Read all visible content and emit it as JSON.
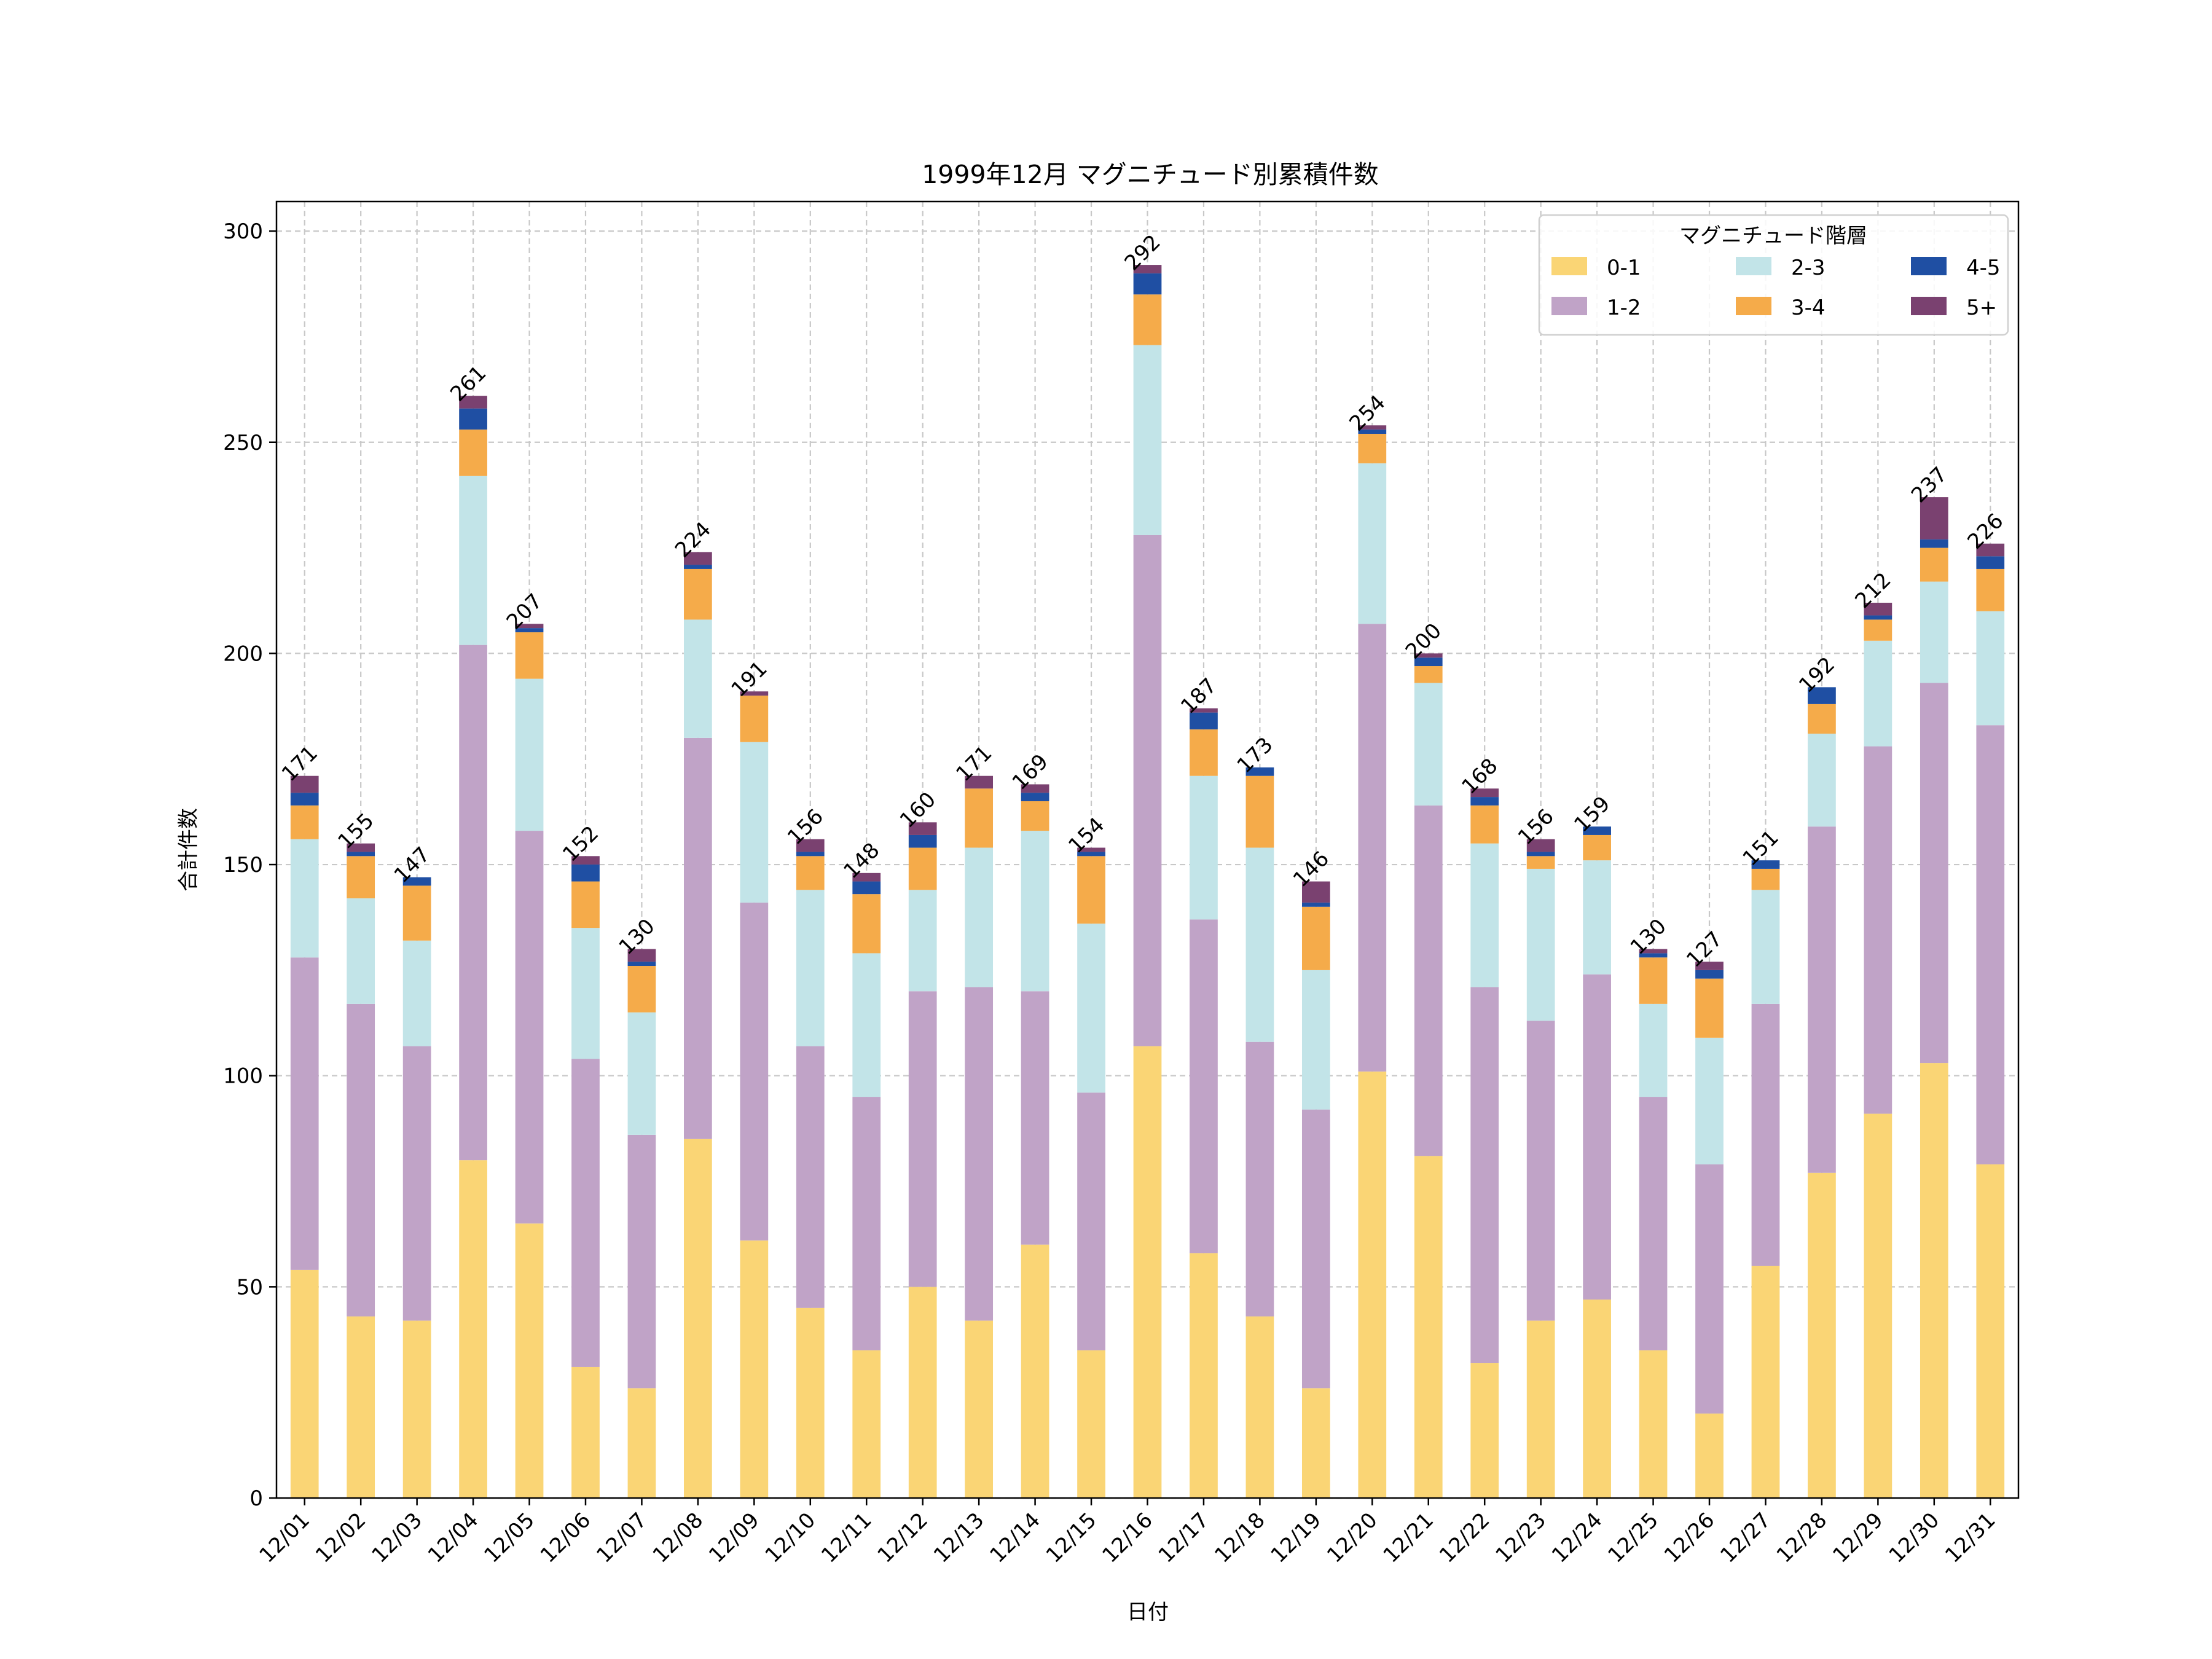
{
  "chart_data": {
    "type": "bar",
    "stacked": true,
    "title": "1999年12月 マグニチュード別累積件数",
    "xlabel": "日付",
    "ylabel": "合計件数",
    "ylim": [
      0,
      307
    ],
    "yticks": [
      0,
      50,
      100,
      150,
      200,
      250,
      300
    ],
    "grid": true,
    "legend": {
      "title": "マグニチュード階層",
      "placement": "top-right",
      "columns": 3
    },
    "categories": [
      "12/01",
      "12/02",
      "12/03",
      "12/04",
      "12/05",
      "12/06",
      "12/07",
      "12/08",
      "12/09",
      "12/10",
      "12/11",
      "12/12",
      "12/13",
      "12/14",
      "12/15",
      "12/16",
      "12/17",
      "12/18",
      "12/19",
      "12/20",
      "12/21",
      "12/22",
      "12/23",
      "12/24",
      "12/25",
      "12/26",
      "12/27",
      "12/28",
      "12/29",
      "12/30",
      "12/31"
    ],
    "series": [
      {
        "name": "0-1",
        "color": "#fad575",
        "values": [
          54,
          43,
          42,
          80,
          65,
          31,
          26,
          85,
          61,
          45,
          35,
          50,
          42,
          60,
          35,
          107,
          58,
          43,
          26,
          101,
          81,
          32,
          42,
          47,
          35,
          20,
          55,
          77,
          91,
          103,
          79
        ]
      },
      {
        "name": "1-2",
        "color": "#c0a3c7",
        "values": [
          74,
          74,
          65,
          122,
          93,
          73,
          60,
          95,
          80,
          62,
          60,
          70,
          79,
          60,
          61,
          121,
          79,
          65,
          66,
          106,
          83,
          89,
          71,
          77,
          60,
          59,
          62,
          82,
          87,
          90,
          104
        ]
      },
      {
        "name": "2-3",
        "color": "#c2e4e8",
        "values": [
          28,
          25,
          25,
          40,
          36,
          31,
          29,
          28,
          38,
          37,
          34,
          24,
          33,
          38,
          40,
          45,
          34,
          46,
          33,
          38,
          29,
          34,
          36,
          27,
          22,
          30,
          27,
          22,
          25,
          24,
          27
        ]
      },
      {
        "name": "3-4",
        "color": "#f5ab4a",
        "values": [
          8,
          10,
          13,
          11,
          11,
          11,
          11,
          12,
          11,
          8,
          14,
          10,
          14,
          7,
          16,
          12,
          11,
          17,
          15,
          7,
          4,
          9,
          3,
          6,
          11,
          14,
          5,
          7,
          5,
          8,
          10
        ]
      },
      {
        "name": "4-5",
        "color": "#1f4fa3",
        "values": [
          3,
          1,
          2,
          5,
          1,
          4,
          1,
          1,
          0,
          1,
          3,
          3,
          0,
          2,
          1,
          5,
          4,
          2,
          1,
          1,
          2,
          2,
          1,
          2,
          1,
          2,
          2,
          4,
          1,
          2,
          3
        ]
      },
      {
        "name": "5+",
        "color": "#7a4170",
        "values": [
          4,
          2,
          0,
          3,
          1,
          2,
          3,
          3,
          1,
          3,
          2,
          3,
          3,
          2,
          1,
          2,
          1,
          0,
          5,
          1,
          1,
          2,
          3,
          0,
          1,
          2,
          0,
          0,
          3,
          10,
          3
        ]
      }
    ],
    "totals": [
      171,
      155,
      147,
      261,
      207,
      152,
      130,
      224,
      191,
      156,
      148,
      160,
      171,
      169,
      154,
      292,
      187,
      173,
      146,
      254,
      200,
      168,
      156,
      159,
      130,
      127,
      151,
      192,
      212,
      237,
      226
    ]
  }
}
